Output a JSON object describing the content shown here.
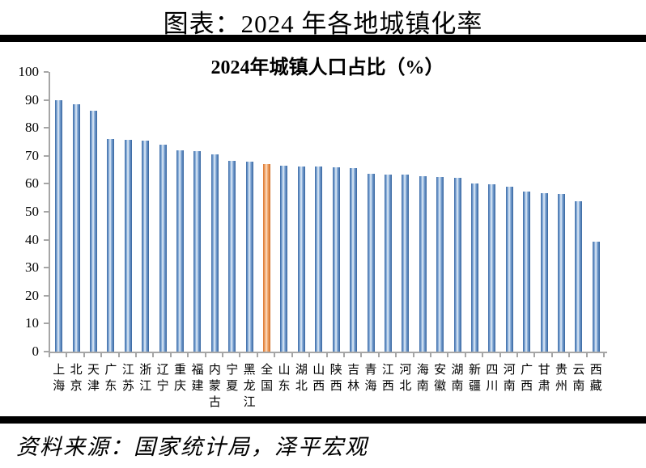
{
  "page_title": "图表：2024 年各地城镇化率",
  "source_note": "资料来源：国家统计局，泽平宏观",
  "colors": {
    "bar_blue_edge": "#3b6aa5",
    "bar_blue_mid": "#7da5d4",
    "bar_blue_highlight": "#e9f1f9",
    "bar_orange_edge": "#db7832",
    "bar_orange_mid": "#f0a468",
    "bar_orange_highlight": "#fce3cb",
    "axis": "#a6a6a6",
    "rule": "#000000",
    "text": "#000000",
    "background": "#ffffff"
  },
  "chart_data": {
    "type": "bar",
    "title": "2024年城镇人口占比（%）",
    "xlabel": "",
    "ylabel": "",
    "ylim": [
      0,
      100
    ],
    "yticks": [
      0,
      10,
      20,
      30,
      40,
      50,
      60,
      70,
      80,
      90,
      100
    ],
    "grid": false,
    "legend": false,
    "highlight_category": "全国",
    "highlight_index": 12,
    "categories": [
      "上海",
      "北京",
      "天津",
      "广东",
      "江苏",
      "浙江",
      "辽宁",
      "重庆",
      "福建",
      "内蒙古",
      "宁夏",
      "黑龙江",
      "全国",
      "山东",
      "湖北",
      "山西",
      "陕西",
      "吉林",
      "青海",
      "江西",
      "河北",
      "海南",
      "安徽",
      "湖南",
      "新疆",
      "四川",
      "河南",
      "广西",
      "甘肃",
      "贵州",
      "云南",
      "西藏"
    ],
    "values": [
      89.8,
      88.3,
      86.0,
      75.9,
      75.6,
      75.3,
      74.1,
      72.1,
      71.8,
      70.4,
      68.2,
      67.8,
      67.0,
      66.4,
      66.3,
      66.2,
      65.9,
      65.5,
      63.7,
      63.4,
      63.2,
      62.8,
      62.3,
      62.0,
      60.2,
      59.9,
      58.9,
      57.1,
      56.7,
      56.4,
      53.9,
      39.3
    ]
  }
}
